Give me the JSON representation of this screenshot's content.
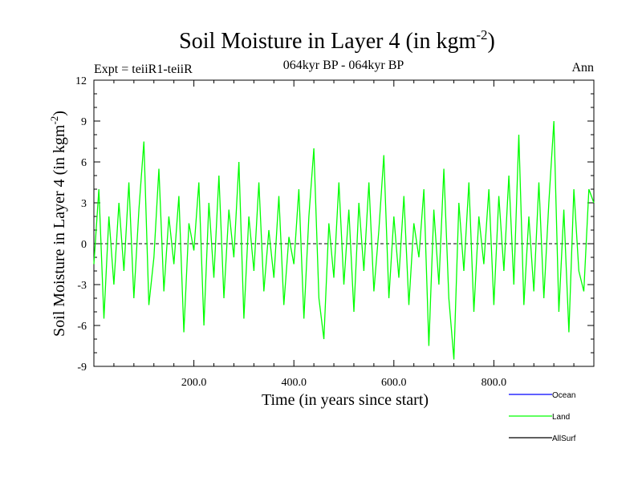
{
  "chart_data": {
    "type": "line",
    "title": "Soil Moisture in Layer 4 (in kgm",
    "title_sup": "-2",
    "title_end": ")",
    "subtitle": "064kyr BP - 064kyr BP",
    "expt_label": "Expt = teiiR1-teiiR",
    "season_label": "Ann",
    "xlabel": "Time (in years since start)",
    "ylabel": "Soil Moisture in Layer 4 (in kgm",
    "ylabel_sup": "-2",
    "ylabel_end": ")",
    "xlim": [
      0,
      1000
    ],
    "ylim": [
      -9,
      12
    ],
    "xticks": [
      200,
      400,
      600,
      800
    ],
    "xtick_labels": [
      "200.0",
      "400.0",
      "600.0",
      "800.0"
    ],
    "yticks": [
      -9,
      -6,
      -3,
      0,
      3,
      6,
      9,
      12
    ],
    "ytick_labels": [
      "-9",
      "-6",
      "-3",
      "0",
      "3",
      "6",
      "9",
      "12"
    ],
    "zero_line": true,
    "legend": [
      {
        "name": "Ocean",
        "color": "#0000ff"
      },
      {
        "name": "Land",
        "color": "#00ff00"
      },
      {
        "name": "AllSurf",
        "color": "#000000"
      }
    ],
    "series": [
      {
        "name": "Land",
        "color": "#00ff00",
        "x": [
          0,
          10,
          20,
          30,
          40,
          50,
          60,
          70,
          80,
          90,
          100,
          110,
          120,
          130,
          140,
          150,
          160,
          170,
          180,
          190,
          200,
          210,
          220,
          230,
          240,
          250,
          260,
          270,
          280,
          290,
          300,
          310,
          320,
          330,
          340,
          350,
          360,
          370,
          380,
          390,
          400,
          410,
          420,
          430,
          440,
          450,
          460,
          470,
          480,
          490,
          500,
          510,
          520,
          530,
          540,
          550,
          560,
          570,
          580,
          590,
          600,
          610,
          620,
          630,
          640,
          650,
          660,
          670,
          680,
          690,
          700,
          710,
          720,
          730,
          740,
          750,
          760,
          770,
          780,
          790,
          800,
          810,
          820,
          830,
          840,
          850,
          860,
          870,
          880,
          890,
          900,
          910,
          920,
          930,
          940,
          950,
          960,
          970,
          980,
          990,
          1000
        ],
        "y": [
          -1.5,
          4.0,
          -5.5,
          2.0,
          -3.0,
          3.0,
          -2.0,
          4.5,
          -4.0,
          2.5,
          7.5,
          -4.5,
          -1.0,
          5.5,
          -3.5,
          2.0,
          -1.5,
          3.5,
          -6.5,
          1.5,
          -0.5,
          4.5,
          -6.0,
          3.0,
          -2.5,
          5.0,
          -4.0,
          2.5,
          -1.0,
          6.0,
          -5.5,
          2.0,
          -2.0,
          4.5,
          -3.5,
          1.0,
          -2.5,
          3.5,
          -4.5,
          0.5,
          -1.5,
          4.0,
          -5.5,
          2.0,
          7.0,
          -4.0,
          -7.0,
          1.5,
          -2.5,
          4.5,
          -3.0,
          2.5,
          -5.0,
          3.0,
          -2.0,
          4.5,
          -3.5,
          1.0,
          6.5,
          -4.0,
          2.0,
          -2.5,
          3.5,
          -4.5,
          1.5,
          -1.0,
          4.0,
          -7.5,
          2.5,
          -3.0,
          5.5,
          -4.0,
          -8.5,
          3.0,
          -2.0,
          4.5,
          -5.0,
          2.0,
          -1.5,
          4.0,
          -4.5,
          3.5,
          -2.0,
          5.0,
          -3.0,
          8.0,
          -4.5,
          2.0,
          -3.5,
          4.5,
          -4.0,
          3.0,
          9.0,
          -5.0,
          2.5,
          -6.5,
          4.0,
          -2.0,
          -3.5,
          4.0,
          3.0
        ]
      }
    ]
  }
}
